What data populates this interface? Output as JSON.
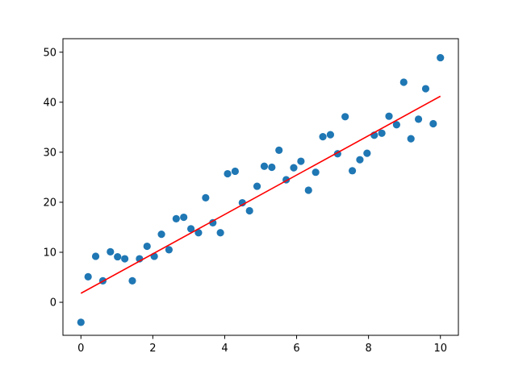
{
  "chart_data": {
    "type": "scatter",
    "title": "",
    "xlabel": "",
    "ylabel": "",
    "xlim": [
      -0.5,
      10.5
    ],
    "ylim": [
      -6.6,
      52.7
    ],
    "xticks": [
      0,
      2,
      4,
      6,
      8,
      10
    ],
    "yticks": [
      0,
      10,
      20,
      30,
      40,
      50
    ],
    "xtick_labels": [
      "0",
      "2",
      "4",
      "6",
      "8",
      "10"
    ],
    "ytick_labels": [
      "0",
      "10",
      "20",
      "30",
      "40",
      "50"
    ],
    "grid": false,
    "legend": "none",
    "points": {
      "color": "#1f77b4",
      "x": [
        0.0,
        0.2,
        0.41,
        0.61,
        0.82,
        1.02,
        1.22,
        1.43,
        1.63,
        1.84,
        2.04,
        2.24,
        2.45,
        2.65,
        2.86,
        3.06,
        3.27,
        3.47,
        3.67,
        3.88,
        4.08,
        4.29,
        4.49,
        4.69,
        4.9,
        5.1,
        5.31,
        5.51,
        5.71,
        5.92,
        6.12,
        6.33,
        6.53,
        6.73,
        6.94,
        7.14,
        7.35,
        7.55,
        7.76,
        7.96,
        8.16,
        8.37,
        8.57,
        8.78,
        8.98,
        9.18,
        9.39,
        9.59,
        9.8,
        10.0
      ],
      "y": [
        -4.0,
        5.1,
        9.2,
        4.3,
        10.1,
        9.1,
        8.7,
        4.3,
        8.7,
        11.2,
        9.2,
        13.6,
        10.5,
        16.7,
        17.0,
        14.7,
        13.9,
        20.9,
        15.9,
        13.9,
        25.7,
        26.2,
        19.9,
        18.3,
        23.2,
        27.2,
        27.0,
        30.4,
        24.5,
        26.9,
        28.2,
        22.4,
        26.0,
        33.1,
        33.5,
        29.7,
        37.1,
        26.3,
        28.5,
        29.8,
        33.4,
        33.8,
        37.2,
        35.5,
        44.0,
        32.7,
        36.6,
        42.7,
        35.7,
        48.9
      ]
    },
    "fit_line": {
      "color": "#ff0000",
      "x": [
        0,
        10
      ],
      "y": [
        1.8,
        41.2
      ]
    }
  }
}
